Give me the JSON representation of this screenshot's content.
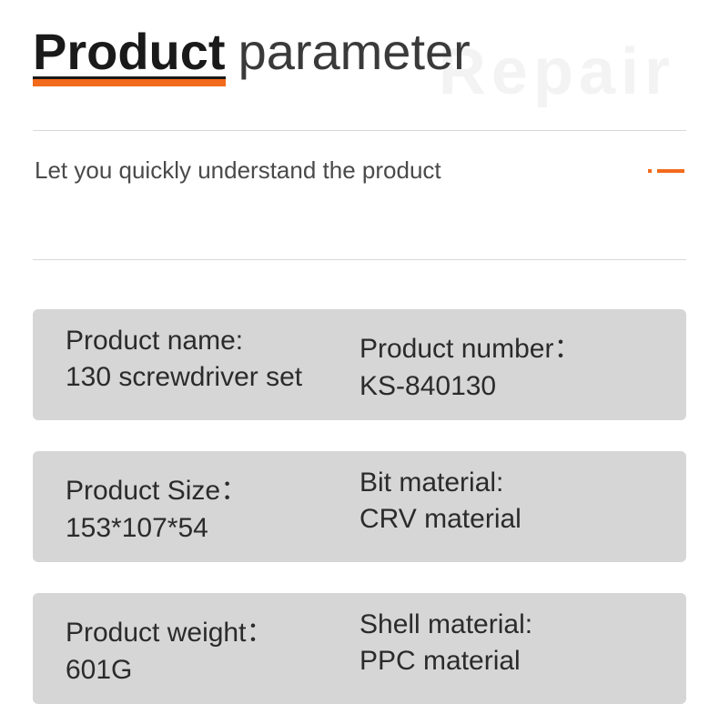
{
  "watermark": "Repair",
  "title": {
    "main": "Product",
    "sub": "parameter"
  },
  "subtitle": "Let you quickly understand the product",
  "specs": [
    {
      "left_label": "Product name:",
      "left_value": "130 screwdriver set",
      "right_label": "Product number：",
      "right_value": "KS-840130"
    },
    {
      "left_label": "Product Size：",
      "left_value": "153*107*54",
      "right_label": "Bit material:",
      "right_value": "CRV material"
    },
    {
      "left_label": "Product weight：",
      "left_value": "601G",
      "right_label": "Shell material:",
      "right_value": "PPC material"
    }
  ],
  "colors": {
    "accent": "#f26a1b",
    "spec_bg": "#d6d6d6",
    "text_dark": "#1a1a1a",
    "text_body": "#3a3a3a",
    "text_cell": "#2b2b2b",
    "divider": "#d9d9d9",
    "watermark": "#f3f3f3"
  }
}
